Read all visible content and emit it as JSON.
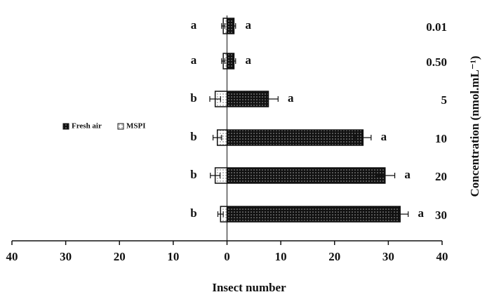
{
  "chart_data": {
    "type": "diverging-bar",
    "xlabel": "Insect number",
    "ylabel": "Concentration (nmol.mL⁻¹)",
    "categories": [
      "0.01",
      "0.50",
      "5",
      "10",
      "20",
      "30"
    ],
    "series": [
      {
        "name": "Fresh air",
        "color": "#111111",
        "values": [
          1.3,
          1.3,
          7.7,
          25.3,
          29.4,
          32.2
        ],
        "errors": [
          0.3,
          0.3,
          1.8,
          1.5,
          1.8,
          1.5
        ],
        "letters": [
          "a",
          "a",
          "a",
          "a",
          "a",
          "a"
        ]
      },
      {
        "name": "MSPI",
        "color": "#ffffff",
        "values": [
          -0.7,
          -0.7,
          -2.2,
          -1.8,
          -2.2,
          -1.2
        ],
        "errors": [
          0.3,
          0.3,
          1.0,
          0.8,
          0.9,
          0.5
        ],
        "letters": [
          "a",
          "a",
          "b",
          "b",
          "b",
          "b"
        ]
      }
    ],
    "xlim": [
      -40,
      40
    ],
    "xticks": [
      {
        "value": -40,
        "label": "40"
      },
      {
        "value": -30,
        "label": "30"
      },
      {
        "value": -20,
        "label": "20"
      },
      {
        "value": -10,
        "label": "10"
      },
      0,
      10,
      20,
      30,
      40
    ],
    "legend": "left"
  }
}
